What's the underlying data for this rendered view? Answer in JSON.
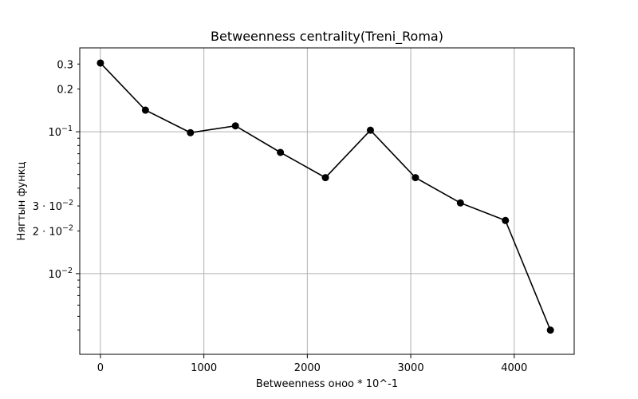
{
  "chart_data": {
    "type": "line",
    "title": "Betweenness centrality(Treni_Roma)",
    "xlabel": "Betweenness оноо * 10^-1",
    "ylabel": "Нягтын функц",
    "xscale": "linear",
    "yscale": "log",
    "xlim": [
      -200,
      4580
    ],
    "ylim": [
      0.0027,
      0.39
    ],
    "grid": true,
    "legend": "none",
    "x_ticks": [
      {
        "value": 0,
        "label": "0"
      },
      {
        "value": 1000,
        "label": "1000"
      },
      {
        "value": 2000,
        "label": "2000"
      },
      {
        "value": 3000,
        "label": "3000"
      },
      {
        "value": 4000,
        "label": "4000"
      }
    ],
    "y_ticks_major": [
      {
        "value": 0.01,
        "base": "10",
        "exp": "−2"
      },
      {
        "value": 0.1,
        "base": "10",
        "exp": "−1"
      }
    ],
    "y_ticks_minor_labeled": [
      {
        "value": 0.02,
        "mant": "2",
        "exp": "−2"
      },
      {
        "value": 0.03,
        "mant": "3",
        "exp": "−2"
      },
      {
        "value": 0.2,
        "plain": "0.2"
      },
      {
        "value": 0.3,
        "plain": "0.3"
      }
    ],
    "y_ticks_minor_unlabeled": [
      0.004,
      0.005,
      0.006,
      0.007,
      0.008,
      0.009,
      0.04,
      0.05,
      0.06,
      0.07,
      0.08,
      0.09
    ],
    "series": [
      {
        "color": "#000000",
        "marker": "circle",
        "x": [
          0,
          435,
          870,
          1305,
          1740,
          2175,
          2610,
          3045,
          3480,
          3915,
          4350
        ],
        "y": [
          0.305,
          0.142,
          0.0985,
          0.11,
          0.0715,
          0.0475,
          0.1025,
          0.0475,
          0.0315,
          0.0237,
          0.004
        ]
      }
    ]
  }
}
